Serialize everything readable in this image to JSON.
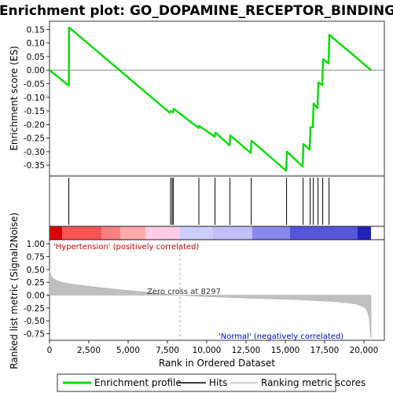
{
  "chart_data": {
    "type": "line",
    "title": "Enrichment plot: GO_DOPAMINE_RECEPTOR_BINDING",
    "top_panel": {
      "ylabel": "Enrichment score (ES)",
      "ylim": [
        -0.39,
        0.18
      ],
      "yticks": [
        0.15,
        0.1,
        0.05,
        0.0,
        -0.05,
        -0.1,
        -0.15,
        -0.2,
        -0.25,
        -0.3,
        -0.35
      ],
      "ytick_labels": [
        "0.15",
        "0.10",
        "0.05",
        "0.00",
        "-0.05",
        "-0.10",
        "-0.15",
        "-0.20",
        "-0.25",
        "-0.30",
        "-0.35"
      ],
      "series": [
        {
          "name": "Enrichment profile",
          "color": "#00dd00",
          "x": [
            0,
            1230,
            1240,
            7650,
            7700,
            7850,
            7900,
            9480,
            9520,
            10500,
            10550,
            11450,
            11500,
            12800,
            12850,
            15050,
            15100,
            16100,
            16150,
            16550,
            16600,
            16750,
            16800,
            17050,
            17100,
            17350,
            17400,
            17750,
            17800,
            20450
          ],
          "y": [
            0.0,
            -0.057,
            0.157,
            -0.157,
            -0.15,
            -0.155,
            -0.143,
            -0.213,
            -0.205,
            -0.245,
            -0.23,
            -0.277,
            -0.24,
            -0.305,
            -0.26,
            -0.37,
            -0.3,
            -0.355,
            -0.272,
            -0.293,
            -0.21,
            -0.21,
            -0.123,
            -0.14,
            -0.045,
            -0.055,
            0.04,
            0.025,
            0.13,
            0.0
          ]
        }
      ]
    },
    "hits": [
      1230,
      7700,
      7800,
      7870,
      9500,
      10530,
      11480,
      12830,
      15080,
      16130,
      16580,
      16780,
      17080,
      17380,
      17780
    ],
    "ranking_bar": {
      "segments": [
        {
          "x0": 0,
          "x1": 800,
          "color": "#dd0000"
        },
        {
          "x0": 800,
          "x1": 3300,
          "color": "#ff5555"
        },
        {
          "x0": 3300,
          "x1": 4500,
          "color": "#ff8080"
        },
        {
          "x0": 4500,
          "x1": 6100,
          "color": "#ffaaaa"
        },
        {
          "x0": 6100,
          "x1": 8300,
          "color": "#ffcce6"
        },
        {
          "x0": 8300,
          "x1": 10400,
          "color": "#ccccff"
        },
        {
          "x0": 10400,
          "x1": 12900,
          "color": "#c0c0f8"
        },
        {
          "x0": 12900,
          "x1": 15300,
          "color": "#8888ee"
        },
        {
          "x0": 15300,
          "x1": 19600,
          "color": "#5555dd"
        },
        {
          "x0": 19600,
          "x1": 20450,
          "color": "#2222bb"
        }
      ]
    },
    "bottom_panel": {
      "ylabel": "Ranked list metric (Signal2Noise)",
      "xlabel": "Rank in Ordered Dataset",
      "ylim": [
        -0.88,
        1.08
      ],
      "yticks": [
        1.0,
        0.75,
        0.5,
        0.25,
        0.0,
        -0.25,
        -0.5,
        -0.75
      ],
      "ytick_labels": [
        "1.00",
        "0.75",
        "0.50",
        "0.25",
        "0.00",
        "-0.25",
        "-0.50",
        "-0.75"
      ],
      "metric_x": [
        0,
        50,
        150,
        400,
        800,
        1500,
        2500,
        4000,
        6000,
        8297,
        10000,
        12000,
        14000,
        16000,
        18000,
        19000,
        19600,
        20000,
        20200,
        20350,
        20400,
        20450
      ],
      "metric_y": [
        0.5,
        0.42,
        0.35,
        0.29,
        0.25,
        0.21,
        0.17,
        0.12,
        0.06,
        0.0,
        -0.03,
        -0.05,
        -0.07,
        -0.09,
        -0.12,
        -0.15,
        -0.18,
        -0.23,
        -0.3,
        -0.45,
        -0.7,
        -0.85
      ],
      "fill_color": "#c0c0c0"
    },
    "xlim": [
      0,
      21300
    ],
    "xticks": [
      0,
      2500,
      5000,
      7500,
      10000,
      12500,
      15000,
      17500,
      20000
    ],
    "xtick_labels": [
      "0",
      "2,500",
      "5,000",
      "7,500",
      "10,000",
      "12,500",
      "15,000",
      "17,500",
      "20,000"
    ],
    "zero_cross": 8297,
    "annotations": {
      "positive": "'Hypertension' (positively correlated)",
      "negative": "'Normal' (negatively correlated)",
      "zero": "Zero cross at 8297"
    },
    "legend": {
      "placement": "bottom",
      "items": [
        {
          "label": "Enrichment profile",
          "color": "#00dd00"
        },
        {
          "label": "Hits",
          "color": "#000000"
        },
        {
          "label": "Ranking metric scores",
          "color": "#c0c0c0"
        }
      ]
    }
  }
}
